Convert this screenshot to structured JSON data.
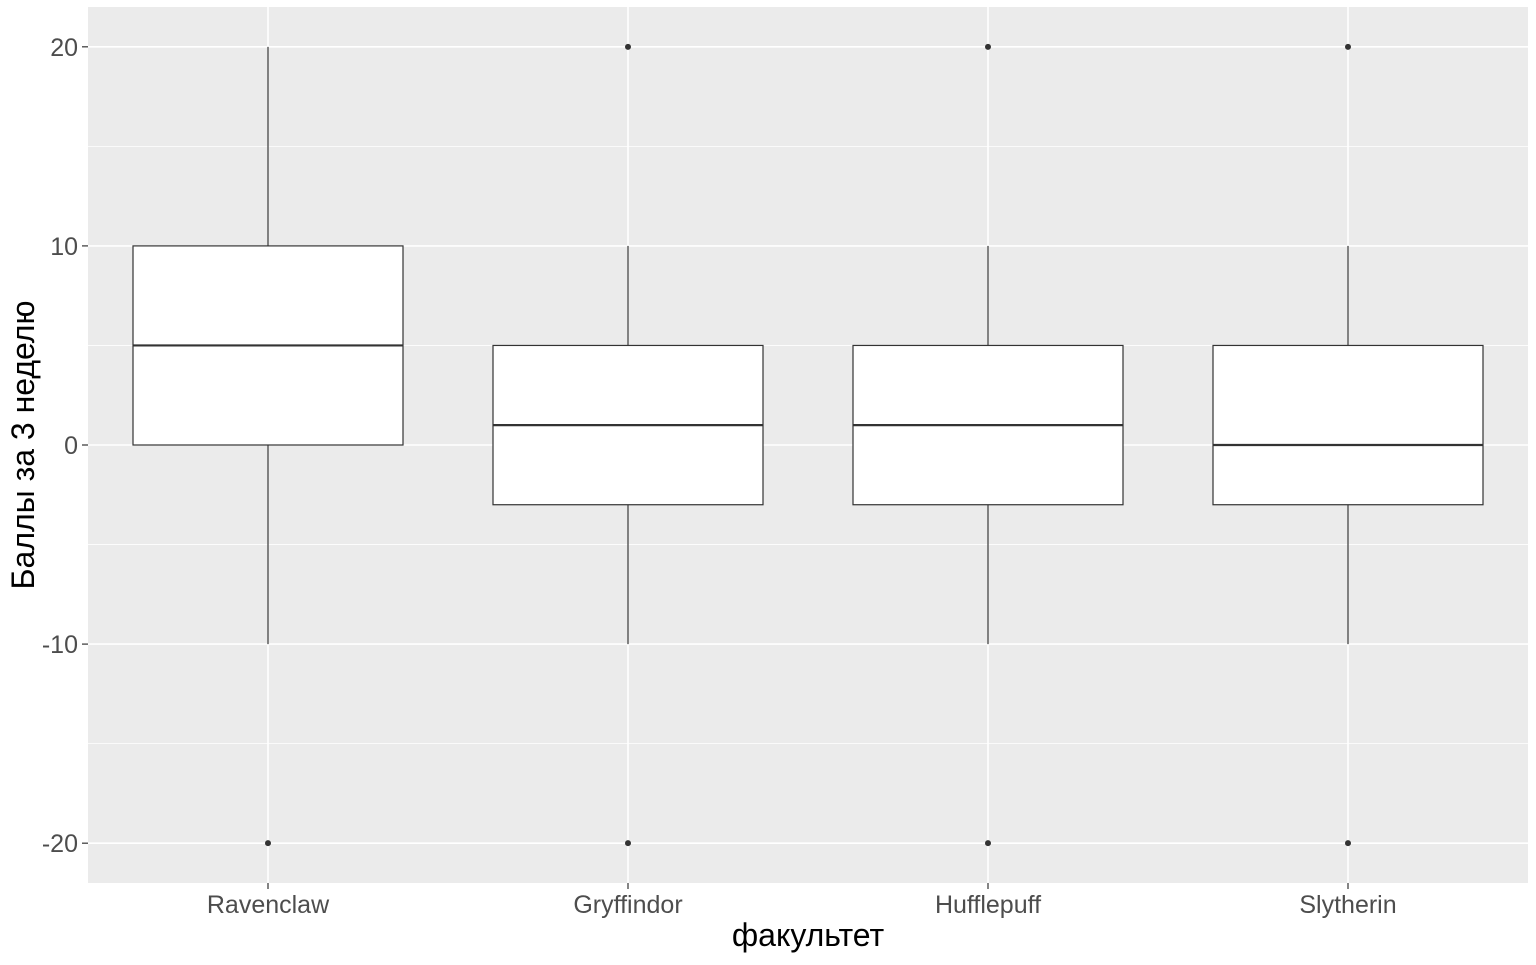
{
  "chart_data": {
    "type": "boxplot",
    "xlabel": "факультет",
    "ylabel": "Баллы за 3 неделю",
    "ylim": [
      -22,
      22
    ],
    "y_ticks": [
      -20,
      -10,
      0,
      10,
      20
    ],
    "y_minor_ticks": [
      -15,
      -5,
      5,
      15
    ],
    "categories": [
      "Ravenclaw",
      "Gryffindor",
      "Hufflepuff",
      "Slytherin"
    ],
    "boxes": [
      {
        "category": "Ravenclaw",
        "whisker_low": -10,
        "q1": 0,
        "median": 5,
        "q3": 10,
        "whisker_high": 20,
        "outliers": [
          -20
        ]
      },
      {
        "category": "Gryffindor",
        "whisker_low": -10,
        "q1": -3,
        "median": 1,
        "q3": 5,
        "whisker_high": 10,
        "outliers": [
          20,
          -20
        ]
      },
      {
        "category": "Hufflepuff",
        "whisker_low": -10,
        "q1": -3,
        "median": 1,
        "q3": 5,
        "whisker_high": 10,
        "outliers": [
          20,
          -20
        ]
      },
      {
        "category": "Slytherin",
        "whisker_low": -10,
        "q1": -3,
        "median": 0,
        "q3": 5,
        "whisker_high": 10,
        "outliers": [
          20,
          -20
        ]
      }
    ],
    "grid": true,
    "legend": "none",
    "colors": {
      "panel_background": "#EBEBEB",
      "grid": "#FFFFFF",
      "box_fill": "#FFFFFF",
      "box_stroke": "#333333",
      "tick_text": "#4D4D4D",
      "title_text": "#000000"
    }
  }
}
